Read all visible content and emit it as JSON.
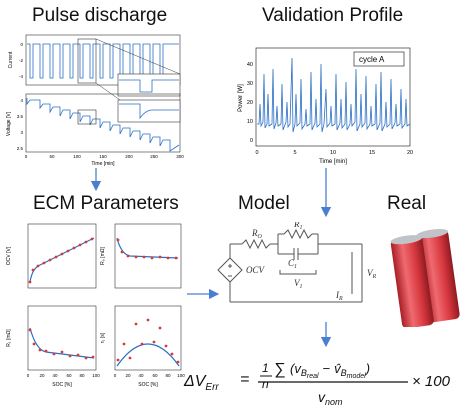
{
  "titles": {
    "pulse": "Pulse discharge",
    "validation": "Validation Profile",
    "ecm": "ECM Parameters",
    "model": "Model",
    "real": "Real"
  },
  "pulse_plots": {
    "top_ylabel": "Current",
    "bottom_ylabel": "Voltage [V]",
    "xlabel": "Time [min]",
    "x_ticks": [
      "0",
      "50",
      "100",
      "150",
      "200",
      "250",
      "300"
    ],
    "top_y_ticks": [
      "0",
      "-2",
      "-4"
    ],
    "bottom_y_ticks": [
      "4",
      "3.5",
      "3",
      "2.5"
    ]
  },
  "validation_plot": {
    "legend": "cycle A",
    "ylabel": "Power [W]",
    "xlabel": "Time [min]",
    "x_ticks": [
      "0",
      "5",
      "10",
      "15",
      "20"
    ],
    "y_ticks": [
      "40",
      "30",
      "20",
      "10",
      "0"
    ]
  },
  "ecm_plots": {
    "ocv_ylabel": "OCV [V]",
    "r0_ylabel": "R₀ [mΩ]",
    "r1_ylabel": "R₁ [mΩ]",
    "tau_ylabel": "τ₁ [s]",
    "xlabel": "SOC [%]",
    "x_ticks": [
      "0",
      "20",
      "40",
      "60",
      "80",
      "100"
    ]
  },
  "circuit": {
    "ocv": "OCV",
    "r0": "R",
    "r0_sub": "O",
    "r1": "R",
    "r1_sub": "1",
    "c1": "C",
    "c1_sub": "1",
    "v1": "V",
    "v1_sub": "1",
    "vr": "V",
    "vr_sub": "R",
    "ir": "I",
    "ir_sub": "R"
  },
  "formula": {
    "lhs": "ΔV",
    "lhs_sub": "Err",
    "equals": "=",
    "frac_num": "1",
    "frac_den": "n",
    "sigma": "∑",
    "term_open": "(v",
    "b_real": "B",
    "real_sub": "real",
    "minus": "−",
    "v_hat": "v̂",
    "b_model": "B",
    "model_sub": "model",
    "term_close": ")",
    "denominator": "v",
    "den_sub": "nom",
    "times": "× 100"
  },
  "colors": {
    "blue": "#2a6fc4",
    "red": "#d63a3a",
    "battery": "#d8383f",
    "arrow": "#4a7fd0",
    "circuit": "#555555"
  }
}
